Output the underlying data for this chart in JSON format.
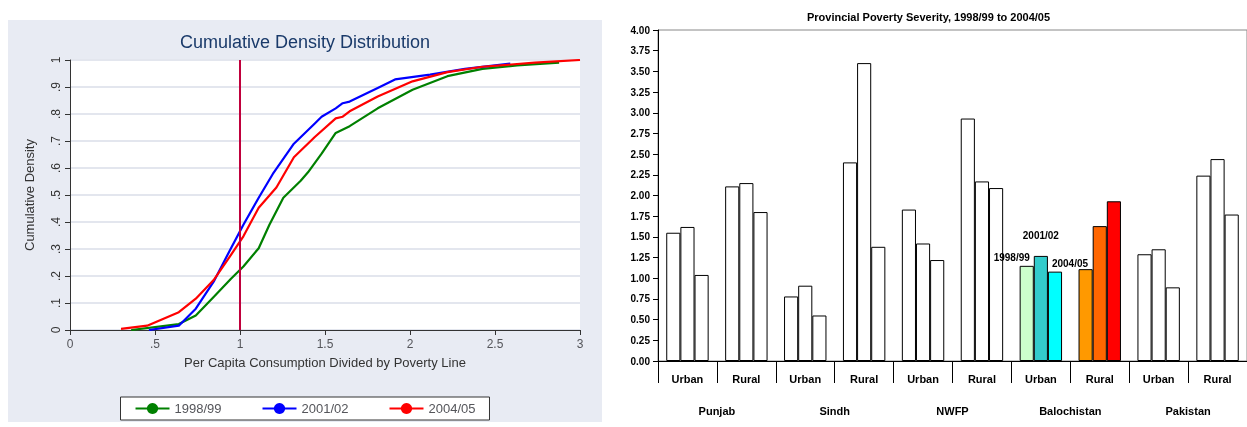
{
  "chart_data": [
    {
      "type": "line",
      "title": "Cumulative Density Distribution",
      "xlabel": "Per Capita Consumption Divided by Poverty Line",
      "ylabel": "Cumulative Density",
      "xlim": [
        0,
        3
      ],
      "xticks": [
        0,
        {
          "value": 0.5,
          "label": ".5"
        },
        1,
        {
          "value": 1.5,
          "label": "1.5"
        },
        2,
        {
          "value": 2.5,
          "label": "2.5"
        },
        3
      ],
      "ylim": [
        0,
        1
      ],
      "yticks": [
        0,
        {
          "value": 0.1,
          "label": ".1"
        },
        {
          "value": 0.2,
          "label": ".2"
        },
        {
          "value": 0.3,
          "label": ".3"
        },
        {
          "value": 0.4,
          "label": ".4"
        },
        {
          "value": 0.5,
          "label": ".5"
        },
        {
          "value": 0.6,
          "label": ".6"
        },
        {
          "value": 0.7,
          "label": ".7"
        },
        {
          "value": 0.8,
          "label": ".8"
        },
        {
          "value": 0.9,
          "label": ".9"
        },
        1
      ],
      "grid": "y",
      "legend": "bottom",
      "marker": "none",
      "line_style": "solid",
      "ref_lines": [
        {
          "axis": "x",
          "value": 1,
          "color": "#c0003c"
        }
      ],
      "series": [
        {
          "name": "1998/99",
          "color": "#008000",
          "x": [
            0.36,
            0.64,
            0.74,
            0.845,
            0.947,
            1.02,
            1.11,
            1.173,
            1.255,
            1.357,
            1.4,
            1.48,
            1.563,
            1.645,
            1.81,
            2.015,
            2.22,
            2.426,
            2.63,
            2.877
          ],
          "values": [
            0,
            0.022,
            0.054,
            0.122,
            0.19,
            0.235,
            0.303,
            0.39,
            0.49,
            0.553,
            0.584,
            0.653,
            0.73,
            0.755,
            0.821,
            0.89,
            0.94,
            0.967,
            0.98,
            0.99
          ]
        },
        {
          "name": "2001/02",
          "color": "#0000ff",
          "x": [
            0.464,
            0.64,
            0.74,
            0.845,
            0.947,
            1.02,
            1.11,
            1.193,
            1.317,
            1.44,
            1.48,
            1.563,
            1.604,
            1.645,
            1.81,
            1.912,
            2.118,
            2.323,
            2.59
          ],
          "values": [
            0,
            0.016,
            0.079,
            0.179,
            0.303,
            0.39,
            0.49,
            0.578,
            0.69,
            0.765,
            0.79,
            0.821,
            0.84,
            0.846,
            0.896,
            0.928,
            0.946,
            0.967,
            0.987
          ]
        },
        {
          "name": "2004/05",
          "color": "#ff0000",
          "x": [
            0.3,
            0.454,
            0.64,
            0.74,
            0.845,
            0.947,
            1.02,
            1.11,
            1.214,
            1.317,
            1.44,
            1.563,
            1.604,
            1.645,
            1.81,
            2.015,
            2.22,
            2.426,
            2.734,
            3.0
          ],
          "values": [
            0.004,
            0.016,
            0.066,
            0.116,
            0.185,
            0.278,
            0.347,
            0.453,
            0.528,
            0.64,
            0.715,
            0.784,
            0.79,
            0.81,
            0.865,
            0.921,
            0.955,
            0.975,
            0.99,
            1.0
          ]
        }
      ]
    },
    {
      "type": "bar",
      "title": "Provincial Poverty Severity, 1998/99 to 2004/05",
      "categories": [
        "Urban",
        "Rural",
        "Urban",
        "Rural",
        "Urban",
        "Rural",
        "Urban",
        "Rural",
        "Urban",
        "Rural"
      ],
      "annotations": [
        "Punjab",
        "Sindh",
        "NWFP",
        "Balochistan",
        "Pakistan"
      ],
      "ylim": [
        0,
        4
      ],
      "yticks": [
        {
          "value": 0,
          "label": "0.00"
        },
        {
          "value": 0.25,
          "label": "0.25"
        },
        {
          "value": 0.5,
          "label": "0.50"
        },
        {
          "value": 0.75,
          "label": "0.75"
        },
        {
          "value": 1,
          "label": "1.00"
        },
        {
          "value": 1.25,
          "label": "1.25"
        },
        {
          "value": 1.5,
          "label": "1.50"
        },
        {
          "value": 1.75,
          "label": "1.75"
        },
        {
          "value": 2,
          "label": "2.00"
        },
        {
          "value": 2.25,
          "label": "2.25"
        },
        {
          "value": 2.5,
          "label": "2.50"
        },
        {
          "value": 2.75,
          "label": "2.75"
        },
        {
          "value": 3,
          "label": "3.00"
        },
        {
          "value": 3.25,
          "label": "3.25"
        },
        {
          "value": 3.5,
          "label": "3.50"
        },
        {
          "value": 3.75,
          "label": "3.75"
        },
        {
          "value": 4,
          "label": "4.00"
        }
      ],
      "series": [
        {
          "name": "1998/99",
          "colors": [
            "#ffffff",
            "#ffffff",
            "#ffffff",
            "#ffffff",
            "#ffffff",
            "#ffffff",
            "#ccffcc",
            "#ff9900",
            "#ffffff",
            "#ffffff"
          ],
          "values": [
            1.55,
            2.11,
            0.78,
            2.4,
            1.83,
            2.93,
            1.15,
            1.11,
            1.29,
            2.24
          ]
        },
        {
          "name": "2001/02",
          "colors": [
            "#ffffff",
            "#ffffff",
            "#ffffff",
            "#ffffff",
            "#ffffff",
            "#ffffff",
            "#33cccc",
            "#ff6600",
            "#ffffff",
            "#ffffff"
          ],
          "values": [
            1.62,
            2.15,
            0.91,
            3.6,
            1.42,
            2.17,
            1.27,
            1.63,
            1.35,
            2.44
          ]
        },
        {
          "name": "2004/05",
          "colors": [
            "#ffffff",
            "#ffffff",
            "#ffffff",
            "#ffffff",
            "#ffffff",
            "#ffffff",
            "#00ffff",
            "#ff0000",
            "#ffffff",
            "#ffffff"
          ],
          "values": [
            1.04,
            1.8,
            0.55,
            1.38,
            1.22,
            2.09,
            1.08,
            1.93,
            0.89,
            1.77
          ]
        }
      ]
    }
  ]
}
